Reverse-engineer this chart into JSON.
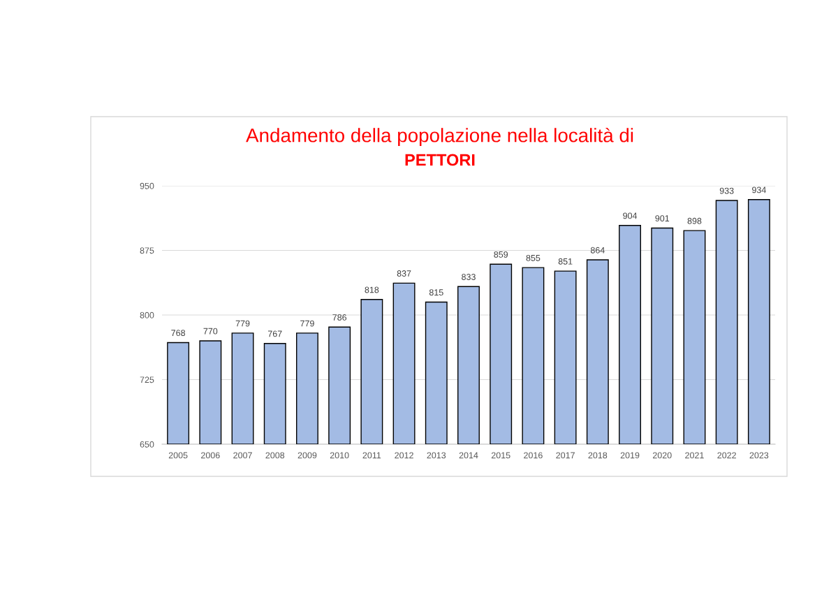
{
  "chart_data": {
    "type": "bar",
    "title": "Andamento della popolazione nella località di",
    "subtitle": "PETTORI",
    "categories": [
      "2005",
      "2006",
      "2007",
      "2008",
      "2009",
      "2010",
      "2011",
      "2012",
      "2013",
      "2014",
      "2015",
      "2016",
      "2017",
      "2018",
      "2019",
      "2020",
      "2021",
      "2022",
      "2023"
    ],
    "values": [
      768,
      770,
      779,
      767,
      779,
      786,
      818,
      837,
      815,
      833,
      859,
      855,
      851,
      864,
      904,
      901,
      898,
      933,
      934
    ],
    "color": "#a3bbe4",
    "ylim": [
      650,
      950
    ],
    "yticks": [
      650,
      725,
      800,
      875,
      950
    ],
    "grid": "y",
    "data_labels": true
  }
}
